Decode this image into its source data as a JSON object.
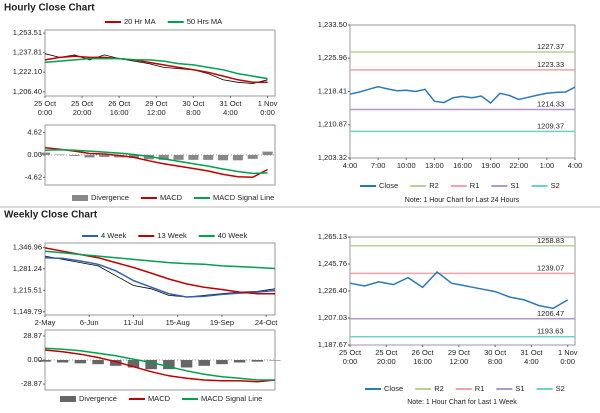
{
  "sections": [
    "Hourly Close Chart",
    "Weekly Close Chart"
  ],
  "chart_data": [
    {
      "type": "line",
      "x": [
        0,
        8,
        16,
        24,
        32,
        40,
        48,
        56,
        64,
        72,
        80,
        88,
        96,
        104,
        112,
        120
      ],
      "xlim": [
        0,
        124
      ],
      "xticks": [
        {
          "value": 0,
          "label": "25 Oct\n0:00"
        },
        {
          "value": 20,
          "label": "25 Oct\n20:00"
        },
        {
          "value": 40,
          "label": "26 Oct\n16:00"
        },
        {
          "value": 60,
          "label": "29 Oct\n12:00"
        },
        {
          "value": 80,
          "label": "30 Oct\n8:00"
        },
        {
          "value": 100,
          "label": "31 Oct\n4:00"
        },
        {
          "value": 120,
          "label": "1 Nov\n0:00"
        }
      ],
      "ylim": [
        1203,
        1256
      ],
      "yticks": [
        {
          "value": 1206.4,
          "label": "1,206.40"
        },
        {
          "value": 1222.1,
          "label": "1,222.10"
        },
        {
          "value": 1237.81,
          "label": "1,237.81"
        },
        {
          "value": 1253.51,
          "label": "1,253.51"
        }
      ],
      "grid": false,
      "series": [
        {
          "color": "#000000",
          "values": [
            1237,
            1234,
            1236,
            1232,
            1236,
            1233,
            1231,
            1229,
            1226,
            1225,
            1224,
            1221,
            1216,
            1214,
            1213,
            1216
          ]
        },
        {
          "name": "20 Hr MA",
          "color": "#c00000",
          "values": [
            1232,
            1234,
            1235,
            1234,
            1234,
            1233,
            1232,
            1230,
            1228,
            1226,
            1224,
            1222,
            1219,
            1216,
            1214,
            1214
          ]
        },
        {
          "name": "50 Hrs MA",
          "color": "#00a050",
          "values": [
            1230,
            1231,
            1232,
            1233,
            1233,
            1233,
            1232,
            1232,
            1231,
            1229,
            1228,
            1226,
            1224,
            1221,
            1219,
            1217
          ]
        }
      ]
    },
    {
      "type": "line",
      "x": [
        0,
        8,
        16,
        24,
        32,
        40,
        48,
        56,
        64,
        72,
        80,
        88,
        96,
        104,
        112,
        120
      ],
      "xlim": [
        0,
        124
      ],
      "ylim": [
        -6.2,
        6.2
      ],
      "yticks": [
        -4.62,
        {
          "value": 0,
          "label": "0.00"
        },
        4.62
      ],
      "grid": false,
      "series": [
        {
          "name": "Divergence",
          "type": "bar",
          "color": "#888888",
          "values": [
            0.5,
            0.1,
            -0.2,
            -0.5,
            -0.4,
            -0.5,
            -0.6,
            -0.9,
            -1.0,
            -1.0,
            -1.0,
            -1.0,
            -1.1,
            -1.1,
            -0.8,
            0.7
          ]
        },
        {
          "name": "MACD",
          "color": "#c00000",
          "values": [
            1.5,
            1.2,
            0.8,
            0.3,
            0.2,
            -0.1,
            -0.5,
            -1.2,
            -1.8,
            -2.3,
            -2.8,
            -3.3,
            -4.0,
            -4.5,
            -4.6,
            -3.0
          ]
        },
        {
          "name": "MACD Signal Line",
          "color": "#00a050",
          "values": [
            1.0,
            1.1,
            1.0,
            0.8,
            0.6,
            0.4,
            0.1,
            -0.3,
            -0.8,
            -1.3,
            -1.8,
            -2.3,
            -2.9,
            -3.4,
            -3.8,
            -3.7
          ]
        }
      ]
    },
    {
      "type": "line",
      "x": [
        0,
        1,
        2,
        3,
        4,
        5,
        6,
        7,
        8,
        9,
        10,
        11,
        12,
        13,
        14,
        15,
        16,
        17,
        18,
        19,
        20,
        21,
        22,
        23,
        24
      ],
      "xlim": [
        0,
        24
      ],
      "xticks": [
        {
          "value": 0,
          "label": "4:00"
        },
        {
          "value": 3,
          "label": "7:00"
        },
        {
          "value": 6,
          "label": "10:00"
        },
        {
          "value": 9,
          "label": "13:00"
        },
        {
          "value": 12,
          "label": "16:00"
        },
        {
          "value": 15,
          "label": "19:00"
        },
        {
          "value": 18,
          "label": "22:00"
        },
        {
          "value": 21,
          "label": "1:00"
        },
        {
          "value": 24,
          "label": "4:00"
        }
      ],
      "ylim": [
        1203.32,
        1233.5
      ],
      "yticks": [
        {
          "value": 1203.32,
          "label": "1,203.32"
        },
        {
          "value": 1210.87,
          "label": "1,210.87"
        },
        {
          "value": 1218.41,
          "label": "1,218.41"
        },
        {
          "value": 1225.96,
          "label": "1,225.96"
        },
        {
          "value": 1233.5,
          "label": "1,233.50"
        }
      ],
      "grid": false,
      "series": [
        {
          "name": "Close",
          "color": "#2a7ab8",
          "values": [
            1217.8,
            1218.3,
            1218.9,
            1219.5,
            1219.0,
            1218.6,
            1218.7,
            1218.4,
            1218.9,
            1216.2,
            1215.9,
            1217.0,
            1217.3,
            1217.0,
            1217.4,
            1215.8,
            1218.0,
            1217.5,
            1216.6,
            1217.1,
            1217.6,
            1218.0,
            1218.2,
            1218.3,
            1219.4
          ]
        }
      ],
      "levels": [
        {
          "name": "R2",
          "value": 1227.37,
          "color": "#b8d090"
        },
        {
          "name": "R1",
          "value": 1223.33,
          "color": "#f0a0a8"
        },
        {
          "name": "S1",
          "value": 1214.33,
          "color": "#b098c8"
        },
        {
          "name": "S2",
          "value": 1209.37,
          "color": "#70d0d0"
        }
      ],
      "note": "Note: 1 Hour Chart for Last 24 Hours"
    },
    {
      "type": "line",
      "x": [
        0,
        2,
        4,
        6,
        8,
        10,
        12,
        14,
        16,
        18,
        20,
        22,
        24,
        26
      ],
      "xlim": [
        0,
        26
      ],
      "xticks": [
        {
          "value": 0,
          "label": "2-May"
        },
        {
          "value": 5,
          "label": "6-Jun"
        },
        {
          "value": 10,
          "label": "11-Jul"
        },
        {
          "value": 15,
          "label": "15-Aug"
        },
        {
          "value": 20,
          "label": "19-Sep"
        },
        {
          "value": 25,
          "label": "24-Oct"
        }
      ],
      "ylim": [
        1140,
        1360
      ],
      "yticks": [
        {
          "value": 1149.79,
          "label": "1,149.79"
        },
        {
          "value": 1215.51,
          "label": "1,215.51"
        },
        {
          "value": 1281.24,
          "label": "1,281.24"
        },
        {
          "value": 1346.96,
          "label": "1,346.96"
        }
      ],
      "grid": false,
      "series": [
        {
          "color": "#000000",
          "values": [
            1320,
            1310,
            1300,
            1290,
            1260,
            1230,
            1220,
            1200,
            1195,
            1200,
            1205,
            1210,
            1212,
            1220
          ]
        },
        {
          "name": "4 Week",
          "color": "#3060b0",
          "values": [
            1315,
            1313,
            1305,
            1295,
            1275,
            1245,
            1225,
            1205,
            1195,
            1197,
            1203,
            1207,
            1210,
            1215
          ]
        },
        {
          "name": "13 Week",
          "color": "#c00000",
          "values": [
            1345,
            1335,
            1325,
            1315,
            1300,
            1285,
            1268,
            1250,
            1235,
            1225,
            1218,
            1210,
            1205,
            1205
          ]
        },
        {
          "name": "40 Week",
          "color": "#00a050",
          "values": [
            1335,
            1330,
            1325,
            1320,
            1315,
            1310,
            1305,
            1300,
            1297,
            1295,
            1290,
            1288,
            1285,
            1282
          ]
        }
      ]
    },
    {
      "type": "line",
      "x": [
        0,
        2,
        4,
        6,
        8,
        10,
        12,
        14,
        16,
        18,
        20,
        22,
        24,
        26
      ],
      "xlim": [
        0,
        26
      ],
      "ylim": [
        -36,
        36
      ],
      "yticks": [
        -28.87,
        {
          "value": 0,
          "label": "0.00"
        },
        28.87
      ],
      "grid": false,
      "series": [
        {
          "name": "Divergence",
          "type": "bar",
          "color": "#666666",
          "values": [
            -2,
            -3,
            -4,
            -5,
            -7,
            -9,
            -11,
            -11,
            -9,
            -7,
            -5,
            -3,
            -2,
            0
          ]
        },
        {
          "name": "MACD",
          "color": "#c00000",
          "values": [
            12,
            10,
            7,
            3,
            -2,
            -8,
            -14,
            -19,
            -22,
            -24,
            -25,
            -25,
            -26,
            -24
          ]
        },
        {
          "name": "MACD Signal Line",
          "color": "#00a050",
          "values": [
            14,
            13,
            11,
            8,
            5,
            1,
            -3,
            -8,
            -13,
            -17,
            -20,
            -22,
            -24,
            -24
          ]
        }
      ]
    },
    {
      "type": "line",
      "x": [
        0,
        8,
        16,
        24,
        32,
        40,
        48,
        56,
        64,
        72,
        80,
        88,
        96,
        104,
        112,
        120
      ],
      "xlim": [
        0,
        124
      ],
      "xticks": [
        {
          "value": 0,
          "label": "25 Oct\n0:00"
        },
        {
          "value": 20,
          "label": "25 Oct\n20:00"
        },
        {
          "value": 40,
          "label": "26 Oct\n16:00"
        },
        {
          "value": 60,
          "label": "29 Oct\n12:00"
        },
        {
          "value": 80,
          "label": "30 Oct\n8:00"
        },
        {
          "value": 100,
          "label": "31 Oct\n4:00"
        },
        {
          "value": 120,
          "label": "1 Nov\n0:00"
        }
      ],
      "ylim": [
        1187.67,
        1265.13
      ],
      "yticks": [
        {
          "value": 1187.67,
          "label": "1,187.67"
        },
        {
          "value": 1207.03,
          "label": "1,207.03"
        },
        {
          "value": 1226.4,
          "label": "1,226.40"
        },
        {
          "value": 1245.76,
          "label": "1,245.76"
        },
        {
          "value": 1265.13,
          "label": "1,265.13"
        }
      ],
      "grid": false,
      "series": [
        {
          "name": "Close",
          "color": "#2a7ab8",
          "values": [
            1232,
            1230,
            1233,
            1231,
            1236,
            1229,
            1240,
            1232,
            1230,
            1228,
            1226,
            1222,
            1220,
            1216,
            1214,
            1220
          ]
        }
      ],
      "levels": [
        {
          "name": "R2",
          "value": 1258.83,
          "color": "#b8d090"
        },
        {
          "name": "R1",
          "value": 1239.07,
          "color": "#f0a0a8"
        },
        {
          "name": "S1",
          "value": 1206.47,
          "color": "#b098c8"
        },
        {
          "name": "S2",
          "value": 1193.63,
          "color": "#70d0d0"
        }
      ],
      "note": "Note: 1 Hour Chart for Last 1 Week"
    }
  ]
}
